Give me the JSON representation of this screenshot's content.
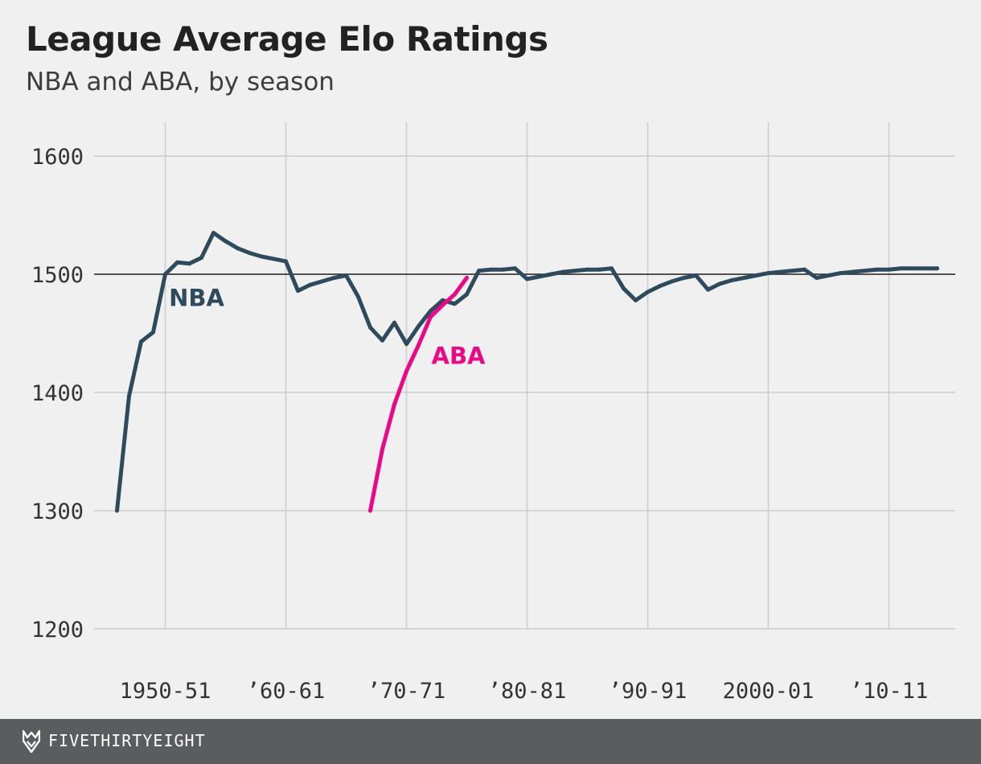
{
  "colors": {
    "background": "#f0f0f0",
    "nba": "#2e4a5c",
    "aba": "#ea0886",
    "grid": "#cccccc",
    "baseline": "#222222",
    "footer": "#595d5e"
  },
  "brand": {
    "name": "FIVETHIRTYEIGHT",
    "icon": "fivethirtyeight-fox-icon"
  },
  "chart_data": {
    "type": "line",
    "title": "League Average Elo Ratings",
    "subtitle": "NBA and ABA, by season",
    "xlabel": "",
    "ylabel": "",
    "x_ticks": [
      {
        "x": 1950,
        "label": "1950-51"
      },
      {
        "x": 1960,
        "label": "’60-61"
      },
      {
        "x": 1970,
        "label": "’70-71"
      },
      {
        "x": 1980,
        "label": "’80-81"
      },
      {
        "x": 1990,
        "label": "’90-91"
      },
      {
        "x": 2000,
        "label": "2000-01"
      },
      {
        "x": 2010,
        "label": "’10-11"
      }
    ],
    "y_ticks": [
      1200,
      1300,
      1400,
      1500,
      1600
    ],
    "xlim": [
      1944.1,
      2015.5
    ],
    "ylim": [
      1170,
      1630
    ],
    "baseline": 1500,
    "grid": true,
    "series": [
      {
        "name": "NBA",
        "color": "#2e4a5c",
        "x": [
          1946,
          1947,
          1948,
          1949,
          1950,
          1951,
          1952,
          1953,
          1954,
          1955,
          1956,
          1957,
          1958,
          1959,
          1960,
          1961,
          1962,
          1963,
          1964,
          1965,
          1966,
          1967,
          1968,
          1969,
          1970,
          1971,
          1972,
          1973,
          1974,
          1975,
          1976,
          1977,
          1978,
          1979,
          1980,
          1981,
          1982,
          1983,
          1984,
          1985,
          1986,
          1987,
          1988,
          1989,
          1990,
          1991,
          1992,
          1993,
          1994,
          1995,
          1996,
          1997,
          1998,
          1999,
          2000,
          2001,
          2002,
          2003,
          2004,
          2005,
          2006,
          2007,
          2008,
          2009,
          2010,
          2011,
          2012,
          2013,
          2014
        ],
        "values": [
          1300,
          1397,
          1443,
          1451,
          1500,
          1510,
          1509,
          1514,
          1535,
          1528,
          1522,
          1518,
          1515,
          1513,
          1511,
          1486,
          1491,
          1494,
          1497,
          1499,
          1481,
          1455,
          1444,
          1459,
          1441,
          1456,
          1469,
          1478,
          1475,
          1483,
          1503,
          1504,
          1504,
          1505,
          1496,
          1498,
          1500,
          1502,
          1503,
          1504,
          1504,
          1505,
          1488,
          1478,
          1485,
          1490,
          1494,
          1497,
          1499,
          1487,
          1492,
          1495,
          1497,
          1499,
          1501,
          1502,
          1503,
          1504,
          1497,
          1499,
          1501,
          1502,
          1503,
          1504,
          1504,
          1505,
          1505,
          1505,
          1505
        ]
      },
      {
        "name": "ABA",
        "color": "#ea0886",
        "x": [
          1967,
          1968,
          1969,
          1970,
          1971,
          1972,
          1973,
          1974,
          1975
        ],
        "values": [
          1300,
          1352,
          1390,
          1418,
          1440,
          1464,
          1474,
          1483,
          1497
        ]
      }
    ],
    "labels": [
      {
        "series": "NBA",
        "text": "NBA",
        "x": 1952.6,
        "y": 1473
      },
      {
        "series": "ABA",
        "text": "ABA",
        "x": 1974.3,
        "y": 1424
      }
    ]
  }
}
